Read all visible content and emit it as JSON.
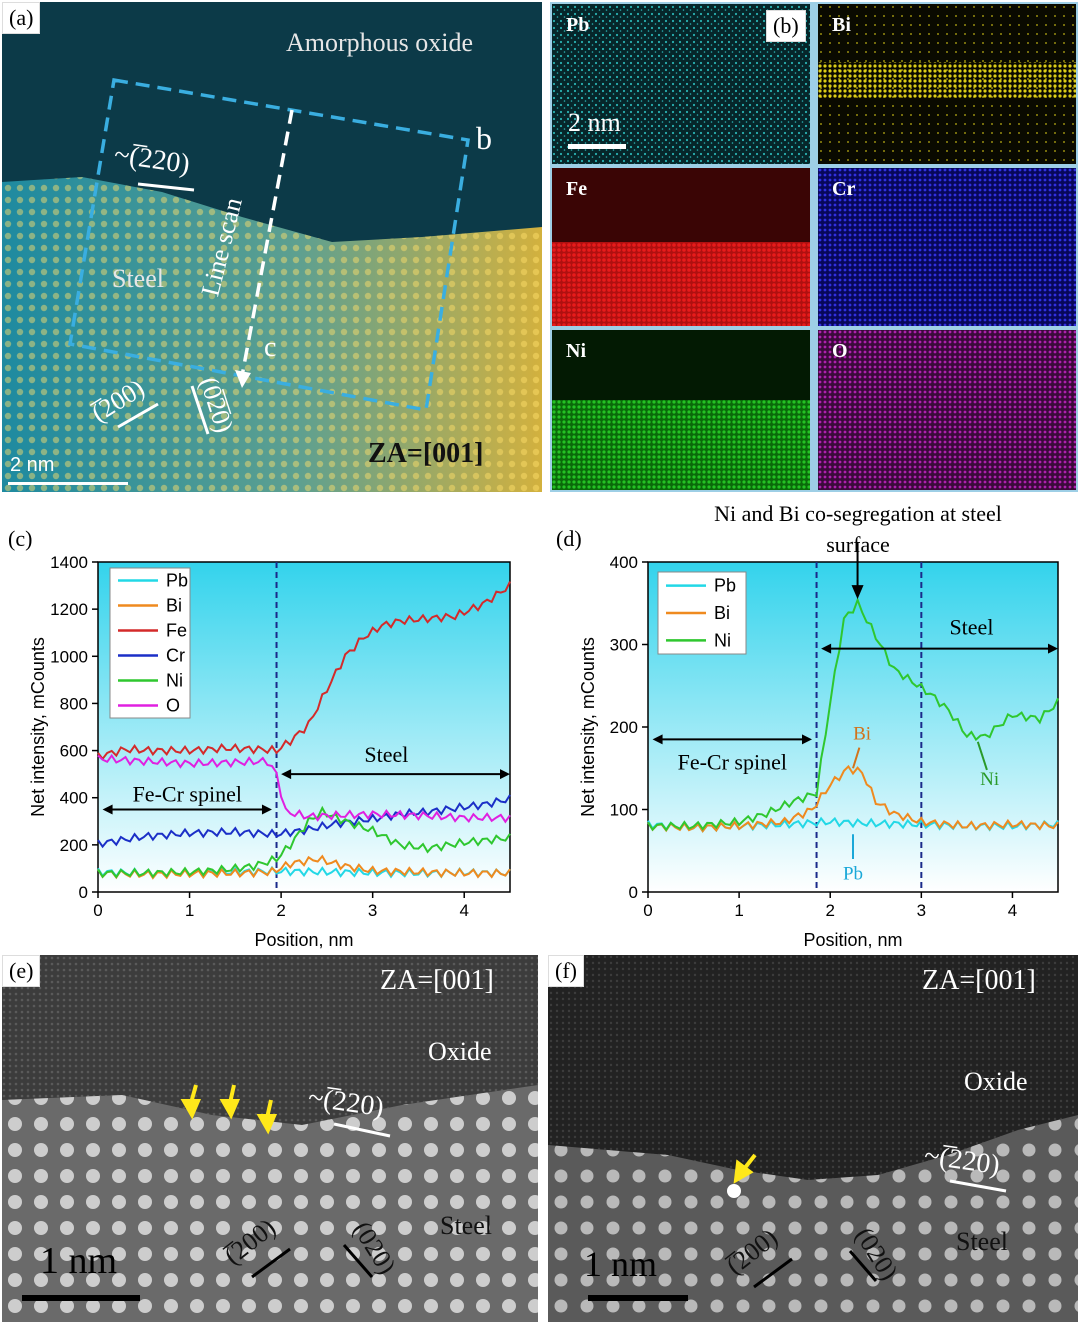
{
  "figure": {
    "a": {
      "label": "(a)",
      "region_text": "Amorphous oxide",
      "plane_top": "~(̅220)",
      "steel_text": "Steel",
      "line_scan_text": "Line scan",
      "marker_b": "b",
      "marker_c": "c",
      "plane_200": "(̅200)",
      "plane_020": "(0̅2̅0)",
      "zone_axis": "ZA=[001]",
      "scale": "2 nm"
    },
    "b": {
      "label": "(b)",
      "scale": "2 nm",
      "maps": [
        {
          "element": "Pb",
          "color": "#36e0e0",
          "bg": "#06262a"
        },
        {
          "element": "Bi",
          "color": "#f2e21a",
          "bg": "#0a0a00"
        },
        {
          "element": "Fe",
          "color": "#e01818",
          "bg": "#2a0000"
        },
        {
          "element": "Cr",
          "color": "#2a2aff",
          "bg": "#00002a"
        },
        {
          "element": "Ni",
          "color": "#22d022",
          "bg": "#001a00"
        },
        {
          "element": "O",
          "color": "#d020d0",
          "bg": "#1a001a"
        }
      ]
    },
    "e": {
      "label": "(e)",
      "zone_axis": "ZA=[001]",
      "oxide": "Oxide",
      "plane_top": "~(̅220)",
      "steel": "Steel",
      "plane_200": "(̅200)",
      "plane_020": "(020)",
      "scale": "1 nm"
    },
    "f": {
      "label": "(f)",
      "zone_axis": "ZA=[001]",
      "oxide": "Oxide",
      "plane_top": "~(̅220)",
      "steel": "Steel",
      "plane_200": "(̅200)",
      "plane_020": "(020)",
      "scale": "1 nm"
    }
  },
  "chart_data": [
    {
      "panel": "(c)",
      "type": "line",
      "xlabel": "Position, nm",
      "ylabel": "Net intensity, mCounts",
      "xlim": [
        0,
        4.5
      ],
      "ylim": [
        0,
        1400
      ],
      "xticks": [
        0,
        1,
        2,
        3,
        4
      ],
      "yticks": [
        0,
        200,
        400,
        600,
        800,
        1000,
        1200,
        1400
      ],
      "interface_x": [
        1.95
      ],
      "annotations": {
        "spinel": "Fe-Cr spinel",
        "steel": "Steel"
      },
      "series": [
        {
          "name": "Pb",
          "color": "#22d8e6",
          "x": [
            0,
            0.5,
            1,
            1.5,
            2,
            2.5,
            3,
            3.5,
            4,
            4.5
          ],
          "y": [
            85,
            80,
            82,
            85,
            88,
            85,
            82,
            80,
            82,
            80
          ]
        },
        {
          "name": "Bi",
          "color": "#ef8a1f",
          "x": [
            0,
            0.5,
            1,
            1.5,
            1.9,
            2.1,
            2.4,
            2.7,
            3.0,
            3.5,
            4,
            4.5
          ],
          "y": [
            80,
            75,
            78,
            80,
            85,
            120,
            140,
            110,
            90,
            85,
            80,
            80
          ]
        },
        {
          "name": "Fe",
          "color": "#d42a2a",
          "x": [
            0,
            0.3,
            0.6,
            1.0,
            1.4,
            1.8,
            1.95,
            2.1,
            2.3,
            2.5,
            2.7,
            2.9,
            3.1,
            3.3,
            3.6,
            3.9,
            4.2,
            4.5
          ],
          "y": [
            575,
            605,
            600,
            600,
            610,
            605,
            600,
            640,
            710,
            860,
            1000,
            1080,
            1130,
            1150,
            1160,
            1170,
            1220,
            1300
          ]
        },
        {
          "name": "Cr",
          "color": "#1b2fc7",
          "x": [
            0,
            0.5,
            1,
            1.5,
            1.95,
            2.3,
            2.6,
            3.0,
            3.3,
            3.6,
            3.9,
            4.2,
            4.5
          ],
          "y": [
            205,
            235,
            250,
            255,
            245,
            265,
            290,
            310,
            330,
            340,
            355,
            370,
            395
          ]
        },
        {
          "name": "Ni",
          "color": "#2fc72f",
          "x": [
            0,
            0.5,
            1,
            1.4,
            1.7,
            1.95,
            2.1,
            2.3,
            2.45,
            2.7,
            3.0,
            3.3,
            3.6,
            4.0,
            4.5
          ],
          "y": [
            80,
            80,
            85,
            95,
            110,
            140,
            200,
            300,
            340,
            300,
            260,
            200,
            185,
            210,
            230
          ]
        },
        {
          "name": "O",
          "color": "#e020e0",
          "x": [
            0,
            0.5,
            1,
            1.5,
            1.85,
            1.95,
            2.05,
            2.3,
            2.6,
            3.0,
            3.5,
            4.0,
            4.5
          ],
          "y": [
            565,
            555,
            545,
            550,
            555,
            500,
            340,
            320,
            325,
            330,
            325,
            315,
            315
          ]
        }
      ]
    },
    {
      "panel": "(d)",
      "type": "line",
      "title": "Ni and Bi co-segregation at steel surface",
      "xlabel": "Position, nm",
      "ylabel": "Net intensity, mCounts",
      "xlim": [
        0,
        4.5
      ],
      "ylim": [
        0,
        400
      ],
      "xticks": [
        0,
        1,
        2,
        3,
        4
      ],
      "yticks": [
        0,
        100,
        200,
        300,
        400
      ],
      "interface_x": [
        1.85,
        3.0
      ],
      "annotations": {
        "spinel": "Fe-Cr spinel",
        "steel": "Steel",
        "bi_arrow": "Bi",
        "ni_arrow": "Ni",
        "pb_arrow": "Pb"
      },
      "series": [
        {
          "name": "Pb",
          "color": "#22d8e6",
          "x": [
            0,
            0.5,
            1,
            1.5,
            2,
            2.5,
            3,
            3.5,
            4,
            4.5
          ],
          "y": [
            82,
            78,
            80,
            82,
            85,
            83,
            82,
            80,
            80,
            82
          ]
        },
        {
          "name": "Bi",
          "color": "#ef8a1f",
          "x": [
            0,
            0.5,
            1,
            1.5,
            1.8,
            2.0,
            2.2,
            2.35,
            2.5,
            2.7,
            3.0,
            3.5,
            4,
            4.5
          ],
          "y": [
            80,
            78,
            80,
            85,
            100,
            130,
            150,
            145,
            110,
            95,
            85,
            80,
            82,
            80
          ]
        },
        {
          "name": "Ni",
          "color": "#2fc72f",
          "x": [
            0,
            0.5,
            1,
            1.3,
            1.6,
            1.85,
            2.0,
            2.15,
            2.3,
            2.5,
            2.7,
            2.9,
            3.1,
            3.3,
            3.5,
            3.7,
            4.0,
            4.3,
            4.5
          ],
          "y": [
            80,
            80,
            85,
            95,
            110,
            120,
            230,
            330,
            350,
            310,
            270,
            255,
            240,
            220,
            190,
            188,
            215,
            210,
            230
          ]
        }
      ]
    }
  ]
}
